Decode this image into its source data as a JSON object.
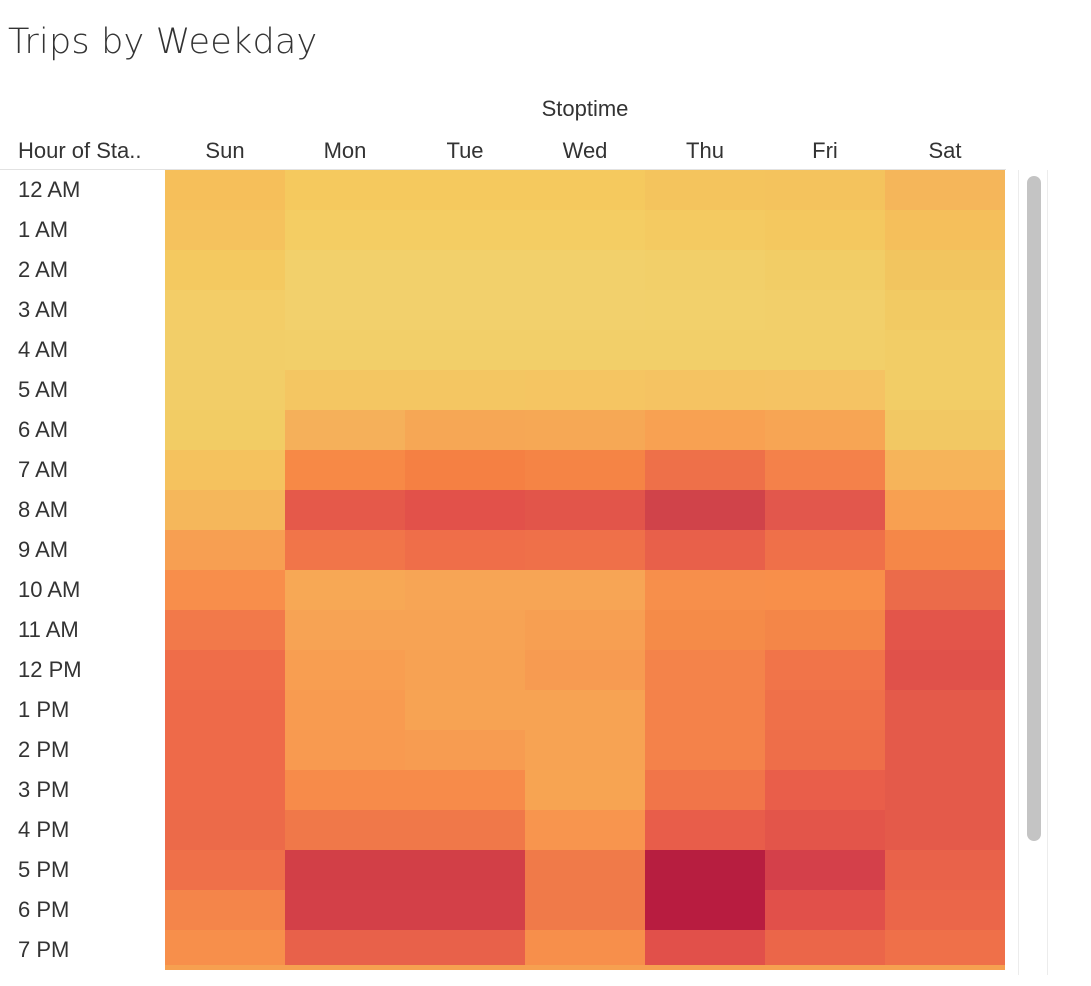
{
  "title": "Trips by Weekday",
  "chart_data": {
    "type": "heatmap",
    "title": "Trips by Weekday",
    "column_title": "Stoptime",
    "row_header": "Hour of Sta..",
    "columns": [
      "Sun",
      "Mon",
      "Tue",
      "Wed",
      "Thu",
      "Fri",
      "Sat"
    ],
    "rows": [
      "12 AM",
      "1 AM",
      "2 AM",
      "3 AM",
      "4 AM",
      "5 AM",
      "6 AM",
      "7 AM",
      "8 AM",
      "9 AM",
      "10 AM",
      "11 AM",
      "12 PM",
      "1 PM",
      "2 PM",
      "3 PM",
      "4 PM",
      "5 PM",
      "6 PM",
      "7 PM"
    ],
    "colors": [
      [
        "#f6bf5a",
        "#f5c95e",
        "#f5c95e",
        "#f5c95e",
        "#f4c45d",
        "#f4c35d",
        "#f5b65a"
      ],
      [
        "#f5c25d",
        "#f4cd63",
        "#f4cd63",
        "#f4cd63",
        "#f4ca61",
        "#f4c85f",
        "#f5bf5b"
      ],
      [
        "#f4c960",
        "#f2d06b",
        "#f2d06b",
        "#f2d06b",
        "#f2cf69",
        "#f2cd66",
        "#f2c55f"
      ],
      [
        "#f3cd67",
        "#f2d06c",
        "#f2d06c",
        "#f2d06c",
        "#f2d06b",
        "#f2cf6a",
        "#f2ca63"
      ],
      [
        "#f2ce68",
        "#f2cf69",
        "#f2cf69",
        "#f2cf69",
        "#f2cf69",
        "#f2cf69",
        "#f2cd66"
      ],
      [
        "#f2cd67",
        "#f4c662",
        "#f4c662",
        "#f5c562",
        "#f5c362",
        "#f5c363",
        "#f2cd66"
      ],
      [
        "#f2cc64",
        "#f5b05a",
        "#f6a755",
        "#f6a855",
        "#f8a152",
        "#f7a554",
        "#f2c863"
      ],
      [
        "#f5c25e",
        "#f78946",
        "#f58043",
        "#f58445",
        "#ee7049",
        "#f4814a",
        "#f6b45a"
      ],
      [
        "#f5b75b",
        "#e5594a",
        "#e2514a",
        "#e2554a",
        "#d0434a",
        "#e2574c",
        "#f8a051"
      ],
      [
        "#f79f52",
        "#f17549",
        "#ef6e49",
        "#ef7049",
        "#e8604a",
        "#ef7049",
        "#f58748"
      ],
      [
        "#f88e4b",
        "#f7a855",
        "#f7a555",
        "#f7a555",
        "#f78f4b",
        "#f88f4a",
        "#eb6b4a"
      ],
      [
        "#f2794a",
        "#f7a354",
        "#f7a354",
        "#f79f52",
        "#f58b48",
        "#f48648",
        "#e3554a"
      ],
      [
        "#ef6d49",
        "#f89e51",
        "#f7a253",
        "#f79b51",
        "#f4834a",
        "#f17449",
        "#e0514a"
      ],
      [
        "#ee6a49",
        "#f89b50",
        "#f7a353",
        "#f7a353",
        "#f4824a",
        "#ef7049",
        "#e45a4a"
      ],
      [
        "#ee6a49",
        "#f89a50",
        "#f79c51",
        "#f7a353",
        "#f4824a",
        "#ee6e49",
        "#e45a4a"
      ],
      [
        "#ee6a49",
        "#f78b4a",
        "#f78b4a",
        "#f7a452",
        "#f17549",
        "#e95e4a",
        "#e45a4a"
      ],
      [
        "#ec6a49",
        "#f07849",
        "#f07849",
        "#f8954e",
        "#e85d4a",
        "#e3554a",
        "#e45a4a"
      ],
      [
        "#ef7049",
        "#d23f47",
        "#d23f47",
        "#f07a49",
        "#b71e40",
        "#d4404a",
        "#e9624a"
      ],
      [
        "#f4854a",
        "#d34048",
        "#d34048",
        "#f07a49",
        "#b81c40",
        "#e1504a",
        "#eb6649"
      ],
      [
        "#f78f4b",
        "#e8614a",
        "#e8614a",
        "#f78f4b",
        "#e1504a",
        "#eb6649",
        "#ef7049"
      ]
    ]
  }
}
